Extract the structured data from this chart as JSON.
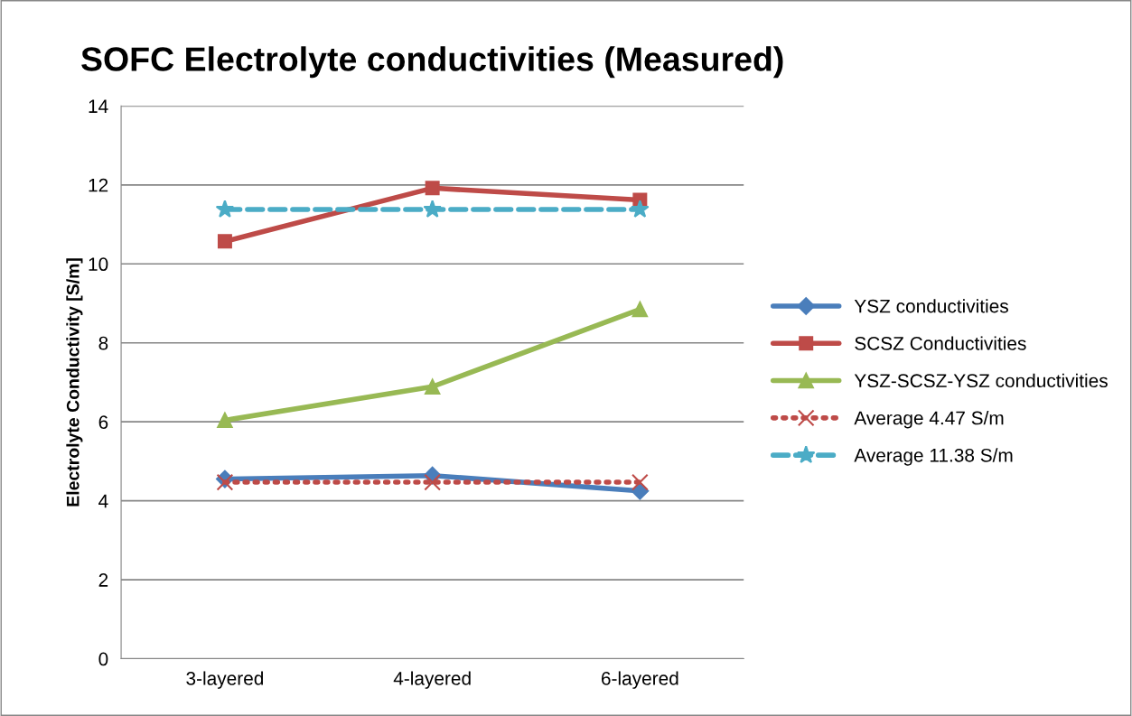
{
  "chart_data": {
    "type": "line",
    "title": "SOFC Electrolyte conductivities (Measured)",
    "ylabel": "Electrolyte Conductivity [S/m]",
    "categories": [
      "3-layered",
      "4-layered",
      "6-layered"
    ],
    "ylim": [
      0,
      14
    ],
    "yticks": [
      0,
      2,
      4,
      6,
      8,
      10,
      12,
      14
    ],
    "grid": "y",
    "legend": "right",
    "series": [
      {
        "name": "YSZ conductivities",
        "color": "#4a7ebb",
        "values": [
          4.55,
          4.64,
          4.25
        ],
        "marker": "diamond",
        "line_style": "solid"
      },
      {
        "name": "SCSZ Conductivities",
        "color": "#be4b48",
        "values": [
          10.57,
          11.92,
          11.62
        ],
        "marker": "square",
        "line_style": "solid"
      },
      {
        "name": "YSZ-SCSZ-YSZ conductivities",
        "color": "#98b954",
        "values": [
          6.04,
          6.89,
          8.85
        ],
        "marker": "triangle",
        "line_style": "solid"
      },
      {
        "name": "Average 4.47 S/m",
        "color": "#be4b48",
        "values": [
          4.47,
          4.47,
          4.47
        ],
        "marker": "cross",
        "line_style": "dotted"
      },
      {
        "name": "Average 11.38 S/m",
        "color": "#4bacc6",
        "values": [
          11.38,
          11.38,
          11.38
        ],
        "marker": "star",
        "line_style": "dashed"
      }
    ]
  }
}
